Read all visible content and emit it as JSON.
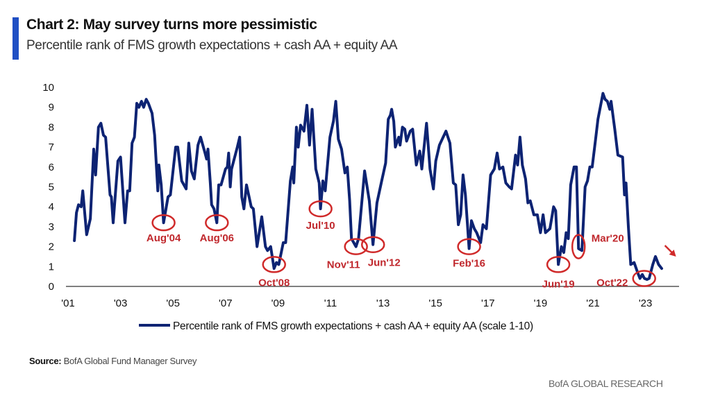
{
  "header": {
    "title": "Chart 2: May survey turns more pessimistic",
    "subtitle": "Percentile rank of FMS growth expectations + cash AA + equity AA"
  },
  "footer": {
    "source_label": "Source:",
    "source_text": " BofA Global Fund Manager Survey",
    "brand": "BofA GLOBAL RESEARCH"
  },
  "colors": {
    "accent": "#1f4fc4",
    "series": "#0d2373",
    "annotation": "#d02a2a",
    "axis": "#555555"
  },
  "chart_data": {
    "type": "line",
    "title": "Chart 2: May survey turns more pessimistic",
    "subtitle": "Percentile rank of FMS growth expectations + cash AA + equity AA",
    "xlabel": "",
    "ylabel": "",
    "xlim": [
      2001,
      2024.2
    ],
    "ylim": [
      0,
      10
    ],
    "x_ticks": [
      2001,
      2003,
      2005,
      2007,
      2009,
      2011,
      2013,
      2015,
      2017,
      2019,
      2021,
      2023
    ],
    "x_tick_labels": [
      "'01",
      "'03",
      "'05",
      "'07",
      "'09",
      "'11",
      "'13",
      "'15",
      "'17",
      "'19",
      "'21",
      "'23"
    ],
    "y_ticks": [
      0,
      1,
      2,
      3,
      4,
      5,
      6,
      7,
      8,
      9,
      10
    ],
    "y_tick_labels": [
      "0",
      "1",
      "2",
      "3",
      "4",
      "5",
      "6",
      "7",
      "8",
      "9",
      "10"
    ],
    "grid": false,
    "legend": {
      "position": "bottom-center",
      "entries": [
        "Percentile rank of FMS growth expectations + cash AA + equity AA (scale 1-10)"
      ]
    },
    "series": [
      {
        "name": "Percentile rank of FMS growth expectations + cash AA + equity AA (scale 1-10)",
        "points": [
          [
            2001.24,
            2.3
          ],
          [
            2001.32,
            3.7
          ],
          [
            2001.4,
            4.1
          ],
          [
            2001.5,
            4.0
          ],
          [
            2001.56,
            4.8
          ],
          [
            2001.71,
            2.6
          ],
          [
            2001.85,
            3.4
          ],
          [
            2001.98,
            6.9
          ],
          [
            2002.05,
            5.6
          ],
          [
            2002.16,
            8.0
          ],
          [
            2002.25,
            8.2
          ],
          [
            2002.35,
            7.6
          ],
          [
            2002.43,
            7.5
          ],
          [
            2002.6,
            4.6
          ],
          [
            2002.65,
            4.5
          ],
          [
            2002.72,
            3.2
          ],
          [
            2002.9,
            6.3
          ],
          [
            2003.0,
            6.5
          ],
          [
            2003.17,
            3.2
          ],
          [
            2003.27,
            4.8
          ],
          [
            2003.35,
            4.8
          ],
          [
            2003.44,
            7.2
          ],
          [
            2003.53,
            7.5
          ],
          [
            2003.62,
            9.2
          ],
          [
            2003.7,
            9.0
          ],
          [
            2003.8,
            9.3
          ],
          [
            2003.88,
            9.0
          ],
          [
            2003.98,
            9.4
          ],
          [
            2004.06,
            9.2
          ],
          [
            2004.2,
            8.7
          ],
          [
            2004.3,
            7.6
          ],
          [
            2004.42,
            4.8
          ],
          [
            2004.46,
            6.1
          ],
          [
            2004.55,
            5.1
          ],
          [
            2004.64,
            3.2
          ],
          [
            2004.81,
            4.5
          ],
          [
            2004.9,
            4.6
          ],
          [
            2005.0,
            5.8
          ],
          [
            2005.1,
            7.0
          ],
          [
            2005.18,
            7.0
          ],
          [
            2005.33,
            5.3
          ],
          [
            2005.5,
            4.9
          ],
          [
            2005.6,
            7.2
          ],
          [
            2005.7,
            5.8
          ],
          [
            2005.81,
            5.4
          ],
          [
            2005.95,
            7.1
          ],
          [
            2006.05,
            7.5
          ],
          [
            2006.22,
            6.7
          ],
          [
            2006.28,
            6.4
          ],
          [
            2006.33,
            6.9
          ],
          [
            2006.42,
            5.2
          ],
          [
            2006.47,
            4.1
          ],
          [
            2006.56,
            3.9
          ],
          [
            2006.67,
            3.2
          ],
          [
            2006.74,
            5.1
          ],
          [
            2006.83,
            5.1
          ],
          [
            2007.0,
            5.9
          ],
          [
            2007.07,
            6.0
          ],
          [
            2007.12,
            6.7
          ],
          [
            2007.18,
            5.0
          ],
          [
            2007.23,
            5.9
          ],
          [
            2007.45,
            7.0
          ],
          [
            2007.54,
            7.5
          ],
          [
            2007.62,
            4.5
          ],
          [
            2007.7,
            3.9
          ],
          [
            2007.8,
            5.1
          ],
          [
            2007.98,
            4.0
          ],
          [
            2008.06,
            3.9
          ],
          [
            2008.2,
            2.0
          ],
          [
            2008.38,
            3.5
          ],
          [
            2008.52,
            2.0
          ],
          [
            2008.6,
            1.8
          ],
          [
            2008.72,
            2.0
          ],
          [
            2008.85,
            0.9
          ],
          [
            2008.94,
            1.2
          ],
          [
            2009.03,
            1.1
          ],
          [
            2009.2,
            2.2
          ],
          [
            2009.29,
            2.2
          ],
          [
            2009.47,
            5.3
          ],
          [
            2009.56,
            6.0
          ],
          [
            2009.6,
            5.2
          ],
          [
            2009.7,
            8.0
          ],
          [
            2009.77,
            7.0
          ],
          [
            2009.86,
            8.1
          ],
          [
            2009.99,
            7.8
          ],
          [
            2010.1,
            9.1
          ],
          [
            2010.2,
            7.1
          ],
          [
            2010.3,
            8.9
          ],
          [
            2010.44,
            5.9
          ],
          [
            2010.57,
            5.2
          ],
          [
            2010.62,
            3.9
          ],
          [
            2010.71,
            5.3
          ],
          [
            2010.8,
            4.8
          ],
          [
            2010.98,
            7.5
          ],
          [
            2011.11,
            8.3
          ],
          [
            2011.2,
            9.3
          ],
          [
            2011.3,
            7.4
          ],
          [
            2011.42,
            6.9
          ],
          [
            2011.55,
            5.7
          ],
          [
            2011.64,
            6.0
          ],
          [
            2011.73,
            4.3
          ],
          [
            2011.8,
            2.4
          ],
          [
            2011.97,
            2.0
          ],
          [
            2012.07,
            2.4
          ],
          [
            2012.3,
            5.8
          ],
          [
            2012.48,
            4.3
          ],
          [
            2012.62,
            2.1
          ],
          [
            2012.77,
            4.2
          ],
          [
            2012.95,
            5.3
          ],
          [
            2013.1,
            6.2
          ],
          [
            2013.2,
            8.4
          ],
          [
            2013.28,
            8.6
          ],
          [
            2013.33,
            8.9
          ],
          [
            2013.41,
            8.3
          ],
          [
            2013.47,
            7.0
          ],
          [
            2013.6,
            7.5
          ],
          [
            2013.65,
            7.1
          ],
          [
            2013.74,
            8.0
          ],
          [
            2013.83,
            7.9
          ],
          [
            2013.9,
            7.3
          ],
          [
            2014.04,
            7.8
          ],
          [
            2014.13,
            7.9
          ],
          [
            2014.27,
            6.1
          ],
          [
            2014.4,
            6.8
          ],
          [
            2014.48,
            5.9
          ],
          [
            2014.66,
            8.2
          ],
          [
            2014.79,
            5.9
          ],
          [
            2014.92,
            4.9
          ],
          [
            2015.01,
            6.3
          ],
          [
            2015.15,
            7.1
          ],
          [
            2015.4,
            7.8
          ],
          [
            2015.55,
            7.2
          ],
          [
            2015.68,
            5.2
          ],
          [
            2015.77,
            5.1
          ],
          [
            2015.87,
            3.1
          ],
          [
            2015.96,
            3.6
          ],
          [
            2016.05,
            5.6
          ],
          [
            2016.14,
            4.6
          ],
          [
            2016.28,
            1.9
          ],
          [
            2016.37,
            3.3
          ],
          [
            2016.48,
            2.9
          ],
          [
            2016.57,
            2.7
          ],
          [
            2016.72,
            2.2
          ],
          [
            2016.81,
            3.1
          ],
          [
            2016.94,
            2.9
          ],
          [
            2017.1,
            5.6
          ],
          [
            2017.24,
            5.9
          ],
          [
            2017.35,
            6.7
          ],
          [
            2017.44,
            5.9
          ],
          [
            2017.57,
            6.0
          ],
          [
            2017.68,
            5.2
          ],
          [
            2017.81,
            5.0
          ],
          [
            2017.9,
            4.9
          ],
          [
            2018.05,
            6.6
          ],
          [
            2018.13,
            6.1
          ],
          [
            2018.22,
            7.5
          ],
          [
            2018.31,
            6.1
          ],
          [
            2018.43,
            5.4
          ],
          [
            2018.52,
            4.2
          ],
          [
            2018.61,
            4.3
          ],
          [
            2018.75,
            3.6
          ],
          [
            2018.88,
            3.6
          ],
          [
            2019.0,
            2.7
          ],
          [
            2019.1,
            3.6
          ],
          [
            2019.19,
            2.7
          ],
          [
            2019.36,
            2.9
          ],
          [
            2019.5,
            4.0
          ],
          [
            2019.58,
            3.8
          ],
          [
            2019.68,
            1.1
          ],
          [
            2019.8,
            2.0
          ],
          [
            2019.89,
            1.7
          ],
          [
            2019.98,
            2.7
          ],
          [
            2020.06,
            2.4
          ],
          [
            2020.15,
            5.1
          ],
          [
            2020.28,
            6.0
          ],
          [
            2020.37,
            6.0
          ],
          [
            2020.45,
            1.9
          ],
          [
            2020.58,
            1.8
          ],
          [
            2020.7,
            5.0
          ],
          [
            2020.79,
            5.3
          ],
          [
            2020.88,
            6.0
          ],
          [
            2020.97,
            6.0
          ],
          [
            2021.1,
            7.4
          ],
          [
            2021.19,
            8.4
          ],
          [
            2021.38,
            9.7
          ],
          [
            2021.46,
            9.4
          ],
          [
            2021.55,
            9.3
          ],
          [
            2021.64,
            8.9
          ],
          [
            2021.69,
            9.3
          ],
          [
            2021.83,
            7.9
          ],
          [
            2021.95,
            6.6
          ],
          [
            2022.13,
            6.5
          ],
          [
            2022.2,
            4.6
          ],
          [
            2022.26,
            5.2
          ],
          [
            2022.35,
            3.0
          ],
          [
            2022.44,
            1.1
          ],
          [
            2022.57,
            1.2
          ],
          [
            2022.7,
            0.7
          ],
          [
            2022.79,
            0.4
          ],
          [
            2022.88,
            0.6
          ],
          [
            2022.96,
            0.4
          ],
          [
            2023.06,
            0.35
          ],
          [
            2023.14,
            0.4
          ],
          [
            2023.28,
            1.1
          ],
          [
            2023.38,
            1.5
          ],
          [
            2023.5,
            1.1
          ],
          [
            2023.62,
            0.9
          ]
        ]
      }
    ],
    "annotations": [
      {
        "label": "Aug'04",
        "x": 2004.64,
        "y": 3.2,
        "circle": true
      },
      {
        "label": "Aug'06",
        "x": 2006.67,
        "y": 3.2,
        "circle": true
      },
      {
        "label": "Oct'08",
        "x": 2008.85,
        "y": 1.1,
        "circle": true
      },
      {
        "label": "Jul'10",
        "x": 2010.62,
        "y": 3.9,
        "circle": true
      },
      {
        "label": "Nov'11",
        "x": 2011.97,
        "y": 2.0,
        "circle": true
      },
      {
        "label": "Jun'12",
        "x": 2012.62,
        "y": 2.1,
        "circle": true
      },
      {
        "label": "Feb'16",
        "x": 2016.28,
        "y": 2.0,
        "circle": true
      },
      {
        "label": "Jun'19",
        "x": 2019.68,
        "y": 1.1,
        "circle": true
      },
      {
        "label": "Mar'20",
        "x": 2020.45,
        "y": 2.0,
        "circle": true
      },
      {
        "label": "Oct'22",
        "x": 2022.95,
        "y": 0.4,
        "circle": true
      },
      {
        "label": "down-arrow",
        "x": 2023.9,
        "y": 1.5,
        "circle": false
      }
    ]
  }
}
